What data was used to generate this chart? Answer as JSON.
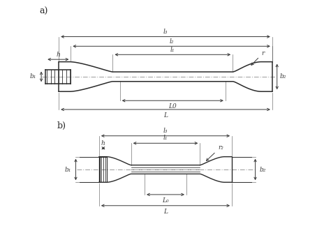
{
  "bg_color": "#ffffff",
  "line_color": "#2a2a2a",
  "dim_color": "#3a3a3a",
  "center_color": "#999999",
  "fig_width": 4.74,
  "fig_height": 3.24,
  "label_a": "a)",
  "label_b": "b)",
  "labels_a": {
    "l3": "l₃",
    "l2": "l₂",
    "l1": "l₁",
    "h": "h",
    "r": "r",
    "b1": "b₁",
    "b2": "b₂",
    "L0": "L0",
    "L": "L"
  },
  "labels_b": {
    "l3": "l₃",
    "l1": "l₁",
    "h": "h",
    "r": "r₂",
    "b1": "b₁",
    "b2": "b₂",
    "L0": "L₀",
    "L": "L"
  }
}
